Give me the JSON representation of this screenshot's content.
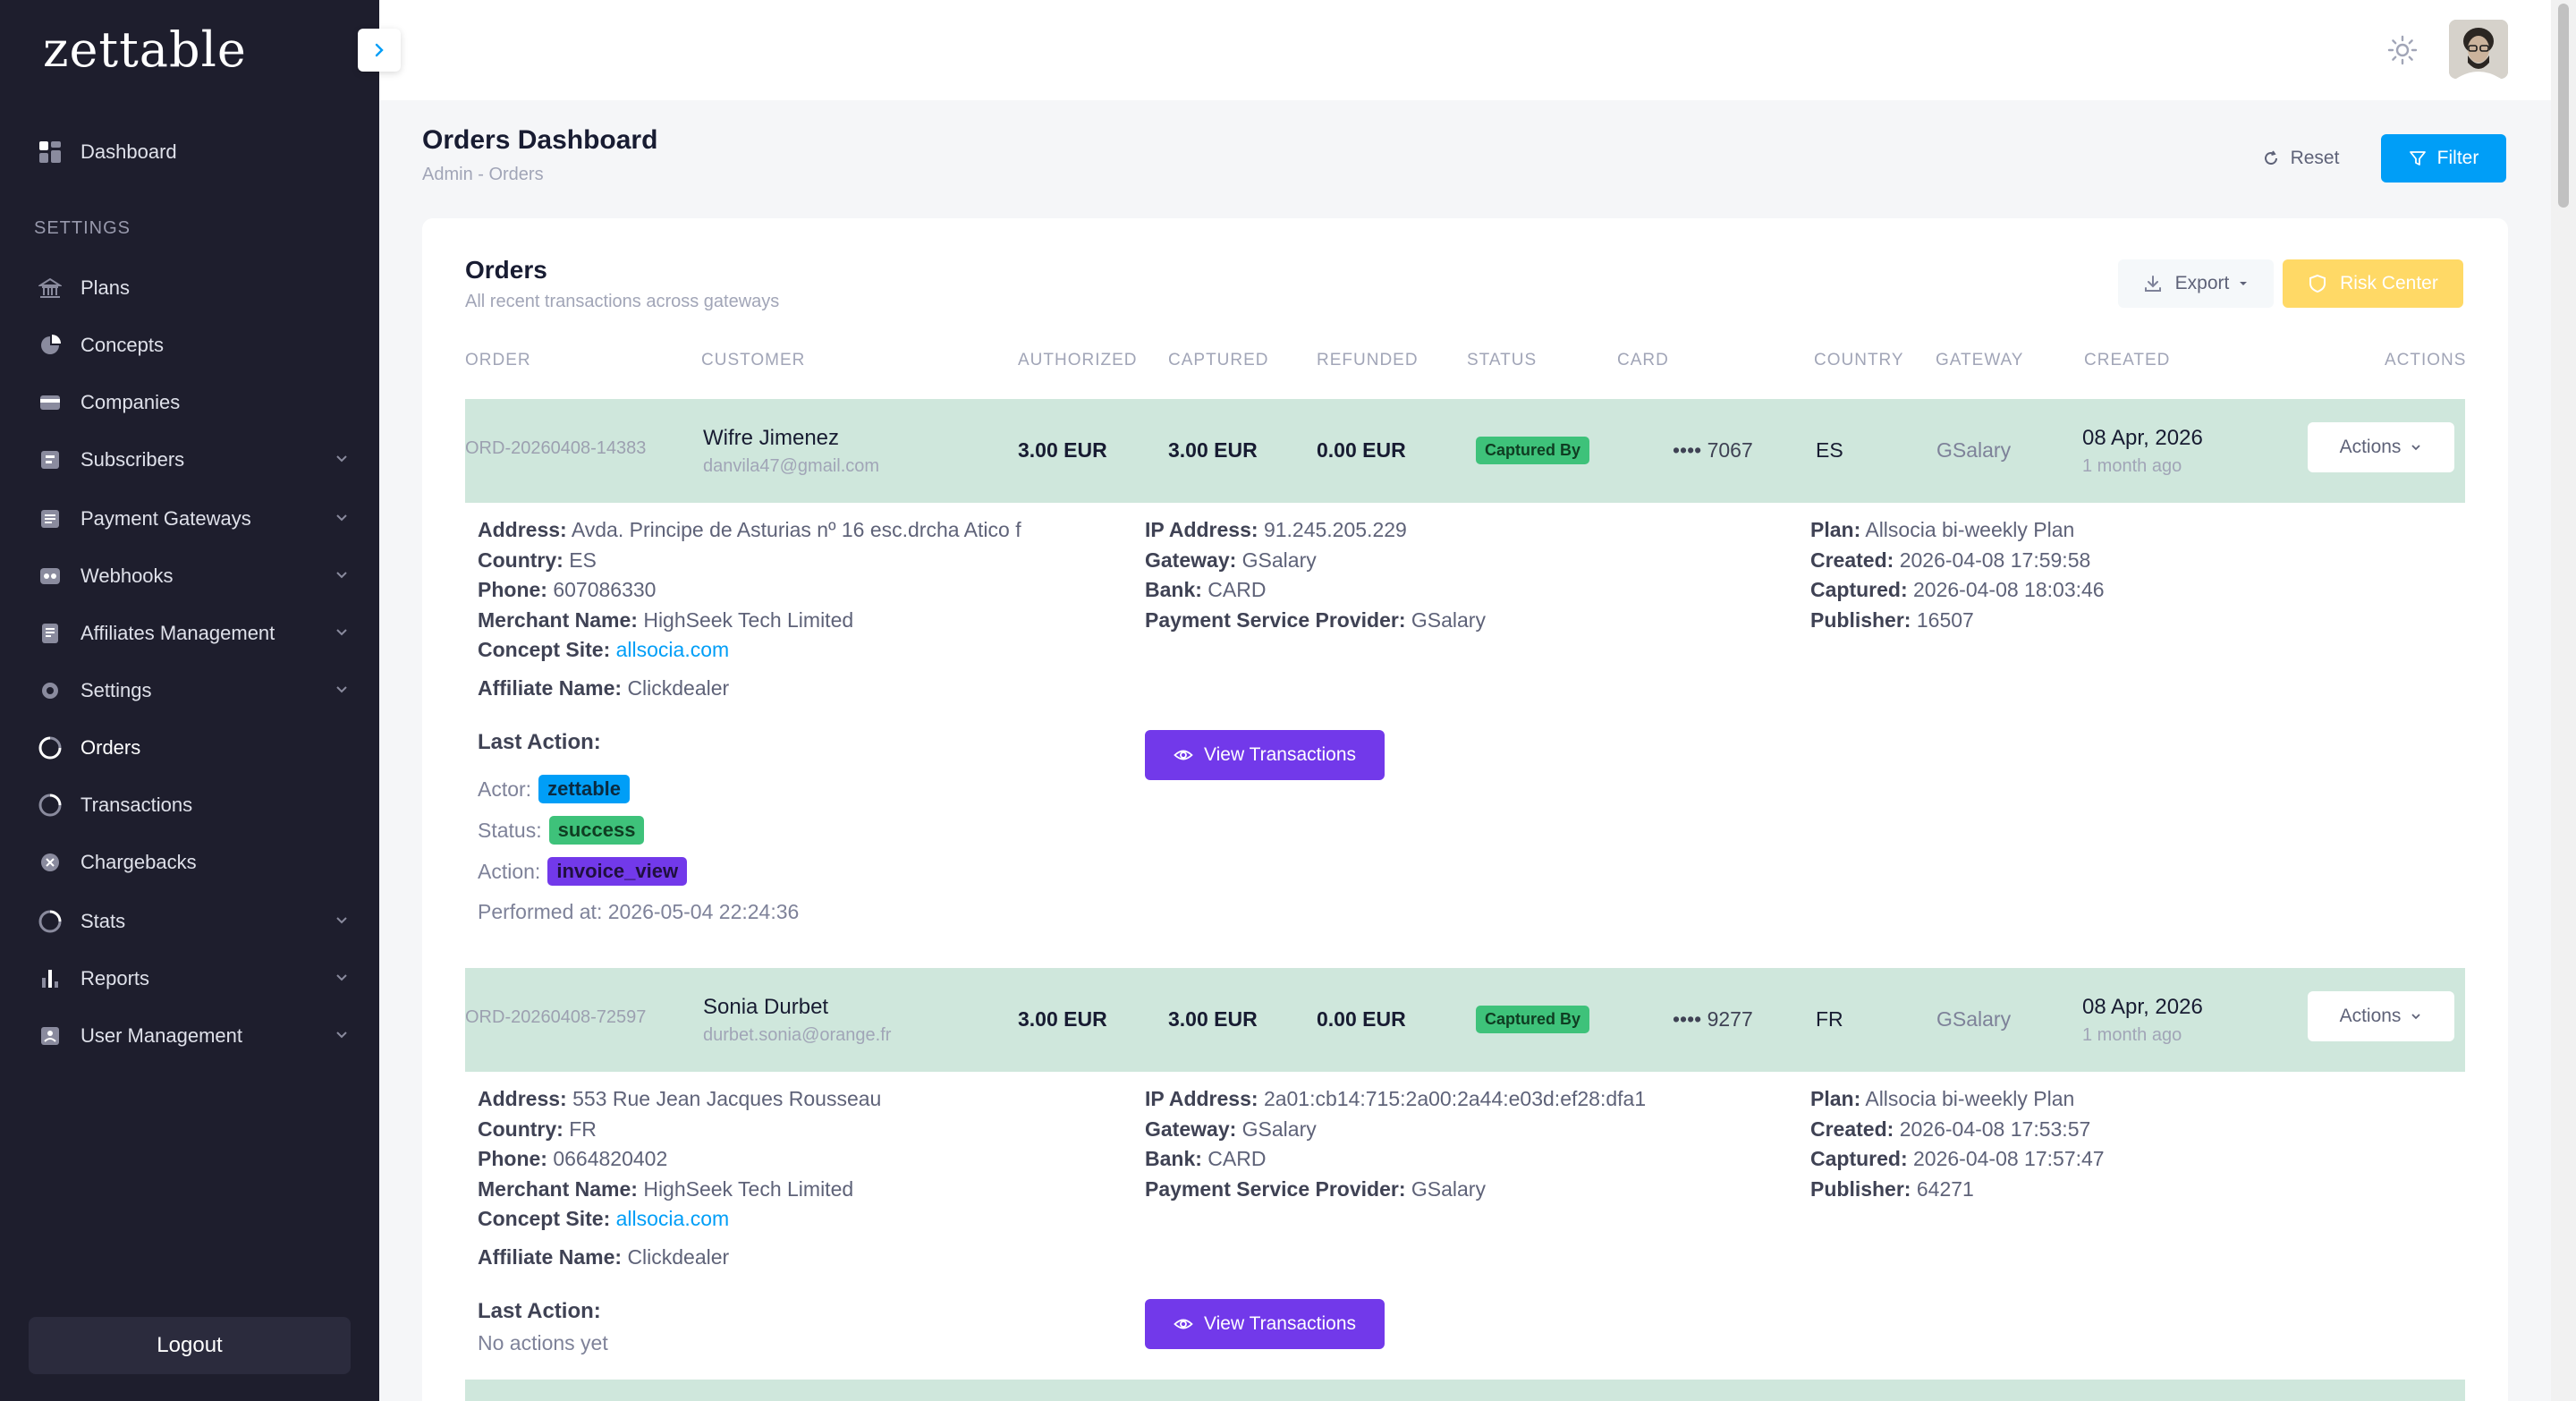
{
  "app": {
    "logo": "zettable"
  },
  "sidebar": {
    "dashboard": "Dashboard",
    "section_label": "SETTINGS",
    "items": [
      {
        "label": "Plans",
        "icon": "bank-icon",
        "has_children": false
      },
      {
        "label": "Concepts",
        "icon": "pie-icon",
        "has_children": false
      },
      {
        "label": "Companies",
        "icon": "card-icon",
        "has_children": false
      },
      {
        "label": "Subscribers",
        "icon": "users-icon",
        "has_children": true
      },
      {
        "label": "Payment Gateways",
        "icon": "list-icon",
        "has_children": true
      },
      {
        "label": "Webhooks",
        "icon": "webhook-icon",
        "has_children": true
      },
      {
        "label": "Affiliates Management",
        "icon": "doc-icon",
        "has_children": true
      },
      {
        "label": "Settings",
        "icon": "gear-icon",
        "has_children": true
      },
      {
        "label": "Orders",
        "icon": "orders-icon",
        "has_children": false,
        "active": true
      },
      {
        "label": "Transactions",
        "icon": "transactions-icon",
        "has_children": false
      },
      {
        "label": "Chargebacks",
        "icon": "chargeback-icon",
        "has_children": false
      },
      {
        "label": "Stats",
        "icon": "stats-icon",
        "has_children": true
      },
      {
        "label": "Reports",
        "icon": "bar-chart-icon",
        "has_children": true
      },
      {
        "label": "User Management",
        "icon": "user-mgmt-icon",
        "has_children": true
      }
    ],
    "logout": "Logout"
  },
  "header": {
    "title": "Orders Dashboard",
    "breadcrumb": "Admin  -  Orders",
    "reset": "Reset",
    "filter": "Filter"
  },
  "orders": {
    "title": "Orders",
    "subtitle": "All recent transactions across gateways",
    "export": "Export",
    "risk_center": "Risk Center",
    "columns": [
      "ORDER",
      "CUSTOMER",
      "AUTHORIZED",
      "CAPTURED",
      "REFUNDED",
      "STATUS",
      "CARD",
      "COUNTRY",
      "GATEWAY",
      "CREATED",
      "ACTIONS"
    ],
    "rows": [
      {
        "id": "ORD-20260408-14383",
        "name": "Wifre Jimenez",
        "email": "danvila47@gmail.com",
        "authorized": "3.00 EUR",
        "captured": "3.00 EUR",
        "refunded": "0.00 EUR",
        "status": "Captured By",
        "card": "•••• 7067",
        "country": "ES",
        "gateway": "GSalary",
        "created_date": "08 Apr, 2026",
        "created_ago": "1 month ago",
        "actions": "Actions",
        "details": {
          "address": "Avda. Principe de Asturias nº 16 esc.drcha Atico f",
          "country": "ES",
          "phone": "607086330",
          "merchant": "HighSeek Tech Limited",
          "concept_site": "allsocia.com",
          "affiliate": "Clickdealer",
          "ip": "91.245.205.229",
          "gateway": "GSalary",
          "bank": "CARD",
          "psp": "GSalary",
          "plan": "Allsocia bi-weekly Plan",
          "created": "2026-04-08 17:59:58",
          "captured": "2026-04-08 18:03:46",
          "publisher": "16507"
        },
        "last_action": {
          "title": "Last Action:",
          "actor": "zettable",
          "status": "success",
          "action": "invoice_view",
          "performed_at": "2026-05-04 22:24:36"
        },
        "view_transactions": "View Transactions"
      },
      {
        "id": "ORD-20260408-72597",
        "name": "Sonia Durbet",
        "email": "durbet.sonia@orange.fr",
        "authorized": "3.00 EUR",
        "captured": "3.00 EUR",
        "refunded": "0.00 EUR",
        "status": "Captured By",
        "card": "•••• 9277",
        "country": "FR",
        "gateway": "GSalary",
        "created_date": "08 Apr, 2026",
        "created_ago": "1 month ago",
        "actions": "Actions",
        "details": {
          "address": "553 Rue Jean Jacques Rousseau",
          "country": "FR",
          "phone": "0664820402",
          "merchant": "HighSeek Tech Limited",
          "concept_site": "allsocia.com",
          "affiliate": "Clickdealer",
          "ip": "2a01:cb14:715:2a00:2a44:e03d:ef28:dfa1",
          "gateway": "GSalary",
          "bank": "CARD",
          "psp": "GSalary",
          "plan": "Allsocia bi-weekly Plan",
          "created": "2026-04-08 17:53:57",
          "captured": "2026-04-08 17:57:47",
          "publisher": "64271"
        },
        "last_action": {
          "title": "Last Action:",
          "none": "No actions yet"
        },
        "view_transactions": "View Transactions"
      }
    ]
  },
  "labels": {
    "address": "Address:",
    "country": "Country:",
    "phone": "Phone:",
    "merchant": "Merchant Name:",
    "concept_site": "Concept Site:",
    "affiliate": "Affiliate Name:",
    "ip": "IP Address:",
    "gateway": "Gateway:",
    "bank": "Bank:",
    "psp": "Payment Service Provider:",
    "plan": "Plan:",
    "created": "Created:",
    "captured": "Captured:",
    "publisher": "Publisher:",
    "actor": "Actor:",
    "status": "Status:",
    "action": "Action:",
    "performed_at": "Performed at:"
  }
}
